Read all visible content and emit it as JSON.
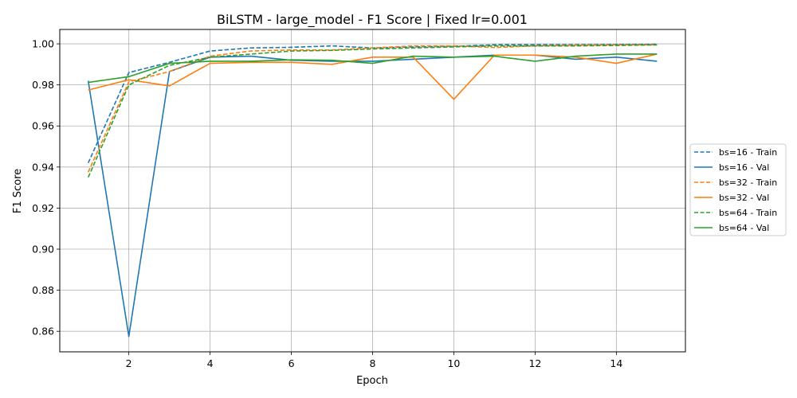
{
  "chart_data": {
    "type": "line",
    "title": "BiLSTM - large_model - F1 Score | Fixed lr=0.001",
    "xlabel": "Epoch",
    "ylabel": "F1 Score",
    "xlim": [
      0.3,
      15.7
    ],
    "ylim": [
      0.85,
      1.007
    ],
    "xticks": [
      2,
      4,
      6,
      8,
      10,
      12,
      14
    ],
    "yticks": [
      0.86,
      0.88,
      0.9,
      0.92,
      0.94,
      0.96,
      0.98,
      1.0
    ],
    "grid": true,
    "legend_position": "outside right",
    "x": [
      1,
      2,
      3,
      4,
      5,
      6,
      7,
      8,
      9,
      10,
      11,
      12,
      13,
      14,
      15
    ],
    "series": [
      {
        "name": "bs=16 - Train",
        "color": "#1f77b4",
        "dash": true,
        "values": [
          0.942,
          0.986,
          0.991,
          0.9965,
          0.998,
          0.9983,
          0.999,
          0.998,
          0.9985,
          0.9988,
          0.9995,
          0.9995,
          0.9995,
          0.9997,
          0.9998
        ]
      },
      {
        "name": "bs=16 - Val",
        "color": "#1f77b4",
        "dash": false,
        "values": [
          0.982,
          0.8575,
          0.9865,
          0.9935,
          0.994,
          0.992,
          0.9915,
          0.9915,
          0.9925,
          0.9935,
          0.9945,
          0.9945,
          0.9925,
          0.9935,
          0.9915
        ]
      },
      {
        "name": "bs=32 - Train",
        "color": "#ff7f0e",
        "dash": true,
        "values": [
          0.9375,
          0.9815,
          0.9865,
          0.994,
          0.9965,
          0.997,
          0.997,
          0.998,
          0.999,
          0.999,
          0.9982,
          0.999,
          0.9993,
          0.9995,
          0.9995
        ]
      },
      {
        "name": "bs=32 - Val",
        "color": "#ff7f0e",
        "dash": false,
        "values": [
          0.9775,
          0.9825,
          0.9795,
          0.9905,
          0.991,
          0.991,
          0.99,
          0.9935,
          0.9935,
          0.973,
          0.9945,
          0.9945,
          0.9935,
          0.9905,
          0.995
        ]
      },
      {
        "name": "bs=64 - Train",
        "color": "#2ca02c",
        "dash": true,
        "values": [
          0.935,
          0.98,
          0.9895,
          0.9935,
          0.995,
          0.9965,
          0.9968,
          0.9975,
          0.998,
          0.9985,
          0.999,
          0.999,
          0.999,
          0.9992,
          0.9995
        ]
      },
      {
        "name": "bs=64 - Val",
        "color": "#2ca02c",
        "dash": false,
        "values": [
          0.9812,
          0.984,
          0.9905,
          0.9915,
          0.9915,
          0.9922,
          0.992,
          0.9905,
          0.994,
          0.9935,
          0.994,
          0.9915,
          0.994,
          0.995,
          0.995
        ]
      }
    ]
  }
}
